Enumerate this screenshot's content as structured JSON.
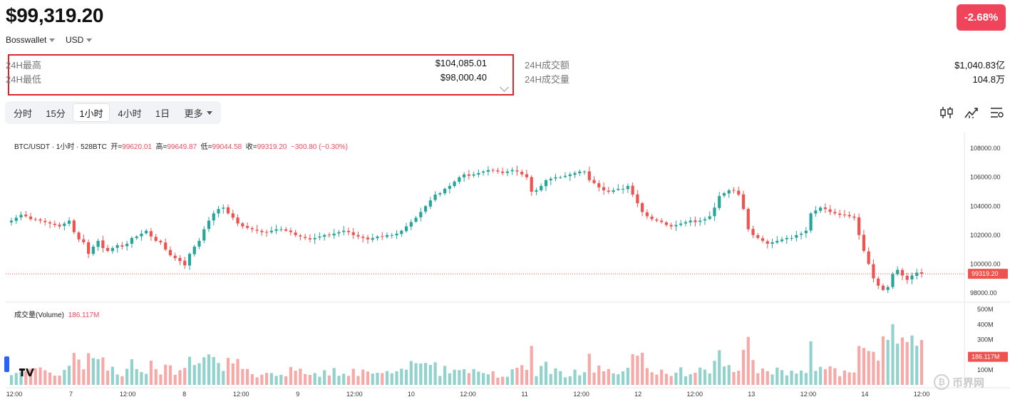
{
  "header": {
    "price": "$99,319.20",
    "change": "-2.68%",
    "wallet": "Bosswallet",
    "currency": "USD"
  },
  "stats": {
    "high_label": "24H最高",
    "high_value": "$104,085.01",
    "low_label": "24H最低",
    "low_value": "$98,000.40",
    "turnover_label": "24H成交额",
    "turnover_value": "$1,040.83亿",
    "volume_label": "24H成交量",
    "volume_value": "104.8万"
  },
  "timeframes": [
    "分时",
    "15分",
    "1小时",
    "4小时",
    "1日",
    "更多"
  ],
  "active_timeframe": "1小时",
  "tools": [
    "candle-type-icon",
    "indicator-icon",
    "settings-list-icon"
  ],
  "legend": {
    "symbol": "BTC/USDT · 1小时 · 528BTC",
    "open_label": "开=",
    "open": "99620.01",
    "high_label": "高=",
    "high": "99649.87",
    "low_label": "低=",
    "low": "99044.58",
    "close_label": "收=",
    "close": "99319.20",
    "delta": "−300.80 (−0.30%)",
    "volume_label": "成交量(Volume)",
    "volume_value": "186.117M"
  },
  "price_axis": [
    "108000.00",
    "106000.00",
    "104000.00",
    "102000.00",
    "100000.00",
    "98000.00"
  ],
  "price_marker": "99319.20",
  "volume_axis": [
    "500M",
    "400M",
    "300M",
    "100M"
  ],
  "volume_marker": "186.117M",
  "time_axis": [
    "12:00",
    "7",
    "12:00",
    "8",
    "12:00",
    "9",
    "12:00",
    "10",
    "12:00",
    "11",
    "12:00",
    "12",
    "12:00",
    "13",
    "12:00",
    "14",
    "12:00"
  ],
  "watermark": "币界网",
  "colors": {
    "up": "#26a69a",
    "down": "#ef5350",
    "accent": "#f0445b"
  },
  "chart_data": {
    "type": "candlestick",
    "price_range": [
      97500,
      108700
    ],
    "volume_range": [
      0,
      520
    ],
    "volume_unit": "M",
    "close_path": [
      103000,
      103200,
      103400,
      103300,
      103100,
      103050,
      103000,
      102900,
      102800,
      102700,
      102600,
      102800,
      103000,
      102200,
      101700,
      101500,
      100700,
      101200,
      101600,
      101100,
      100900,
      101100,
      101300,
      101200,
      101400,
      101800,
      101900,
      102100,
      102300,
      101900,
      101600,
      101500,
      101000,
      100600,
      100400,
      100200,
      99900,
      100700,
      101200,
      101600,
      102400,
      103000,
      103500,
      103800,
      103900,
      103500,
      103200,
      102800,
      102600,
      102500,
      102400,
      102300,
      102200,
      102200,
      102300,
      102400,
      102400,
      102300,
      102200,
      102000,
      101900,
      101800,
      101700,
      101800,
      101900,
      102000,
      102000,
      102100,
      102200,
      102300,
      102200,
      102000,
      101900,
      101800,
      101700,
      101800,
      101900,
      101900,
      102000,
      102000,
      102100,
      102300,
      102600,
      102900,
      103200,
      103600,
      104000,
      104400,
      104800,
      104900,
      105200,
      105400,
      105700,
      106000,
      106200,
      106100,
      106200,
      106300,
      106400,
      106500,
      106500,
      106400,
      106300,
      106400,
      106500,
      106400,
      106200,
      106000,
      105000,
      105100,
      105400,
      105800,
      105900,
      106000,
      106000,
      106100,
      106200,
      106300,
      106400,
      106400,
      105800,
      105600,
      105300,
      105100,
      105000,
      105100,
      105200,
      105200,
      105400,
      104800,
      104200,
      103600,
      103300,
      103100,
      103000,
      102900,
      102700,
      102600,
      102700,
      102800,
      102900,
      103000,
      102900,
      103000,
      103100,
      103300,
      103900,
      104700,
      104900,
      105100,
      105100,
      104800,
      103800,
      102400,
      102000,
      101800,
      101600,
      101400,
      101500,
      101600,
      101700,
      101800,
      101800,
      102000,
      102100,
      102300,
      103500,
      103700,
      103900,
      103800,
      103600,
      103500,
      103400,
      103400,
      103300,
      103200,
      102000,
      100900,
      100000,
      99000,
      98500,
      98200,
      98400,
      99300,
      99600,
      99200,
      98900,
      99200,
      99400,
      99319
    ]
  }
}
